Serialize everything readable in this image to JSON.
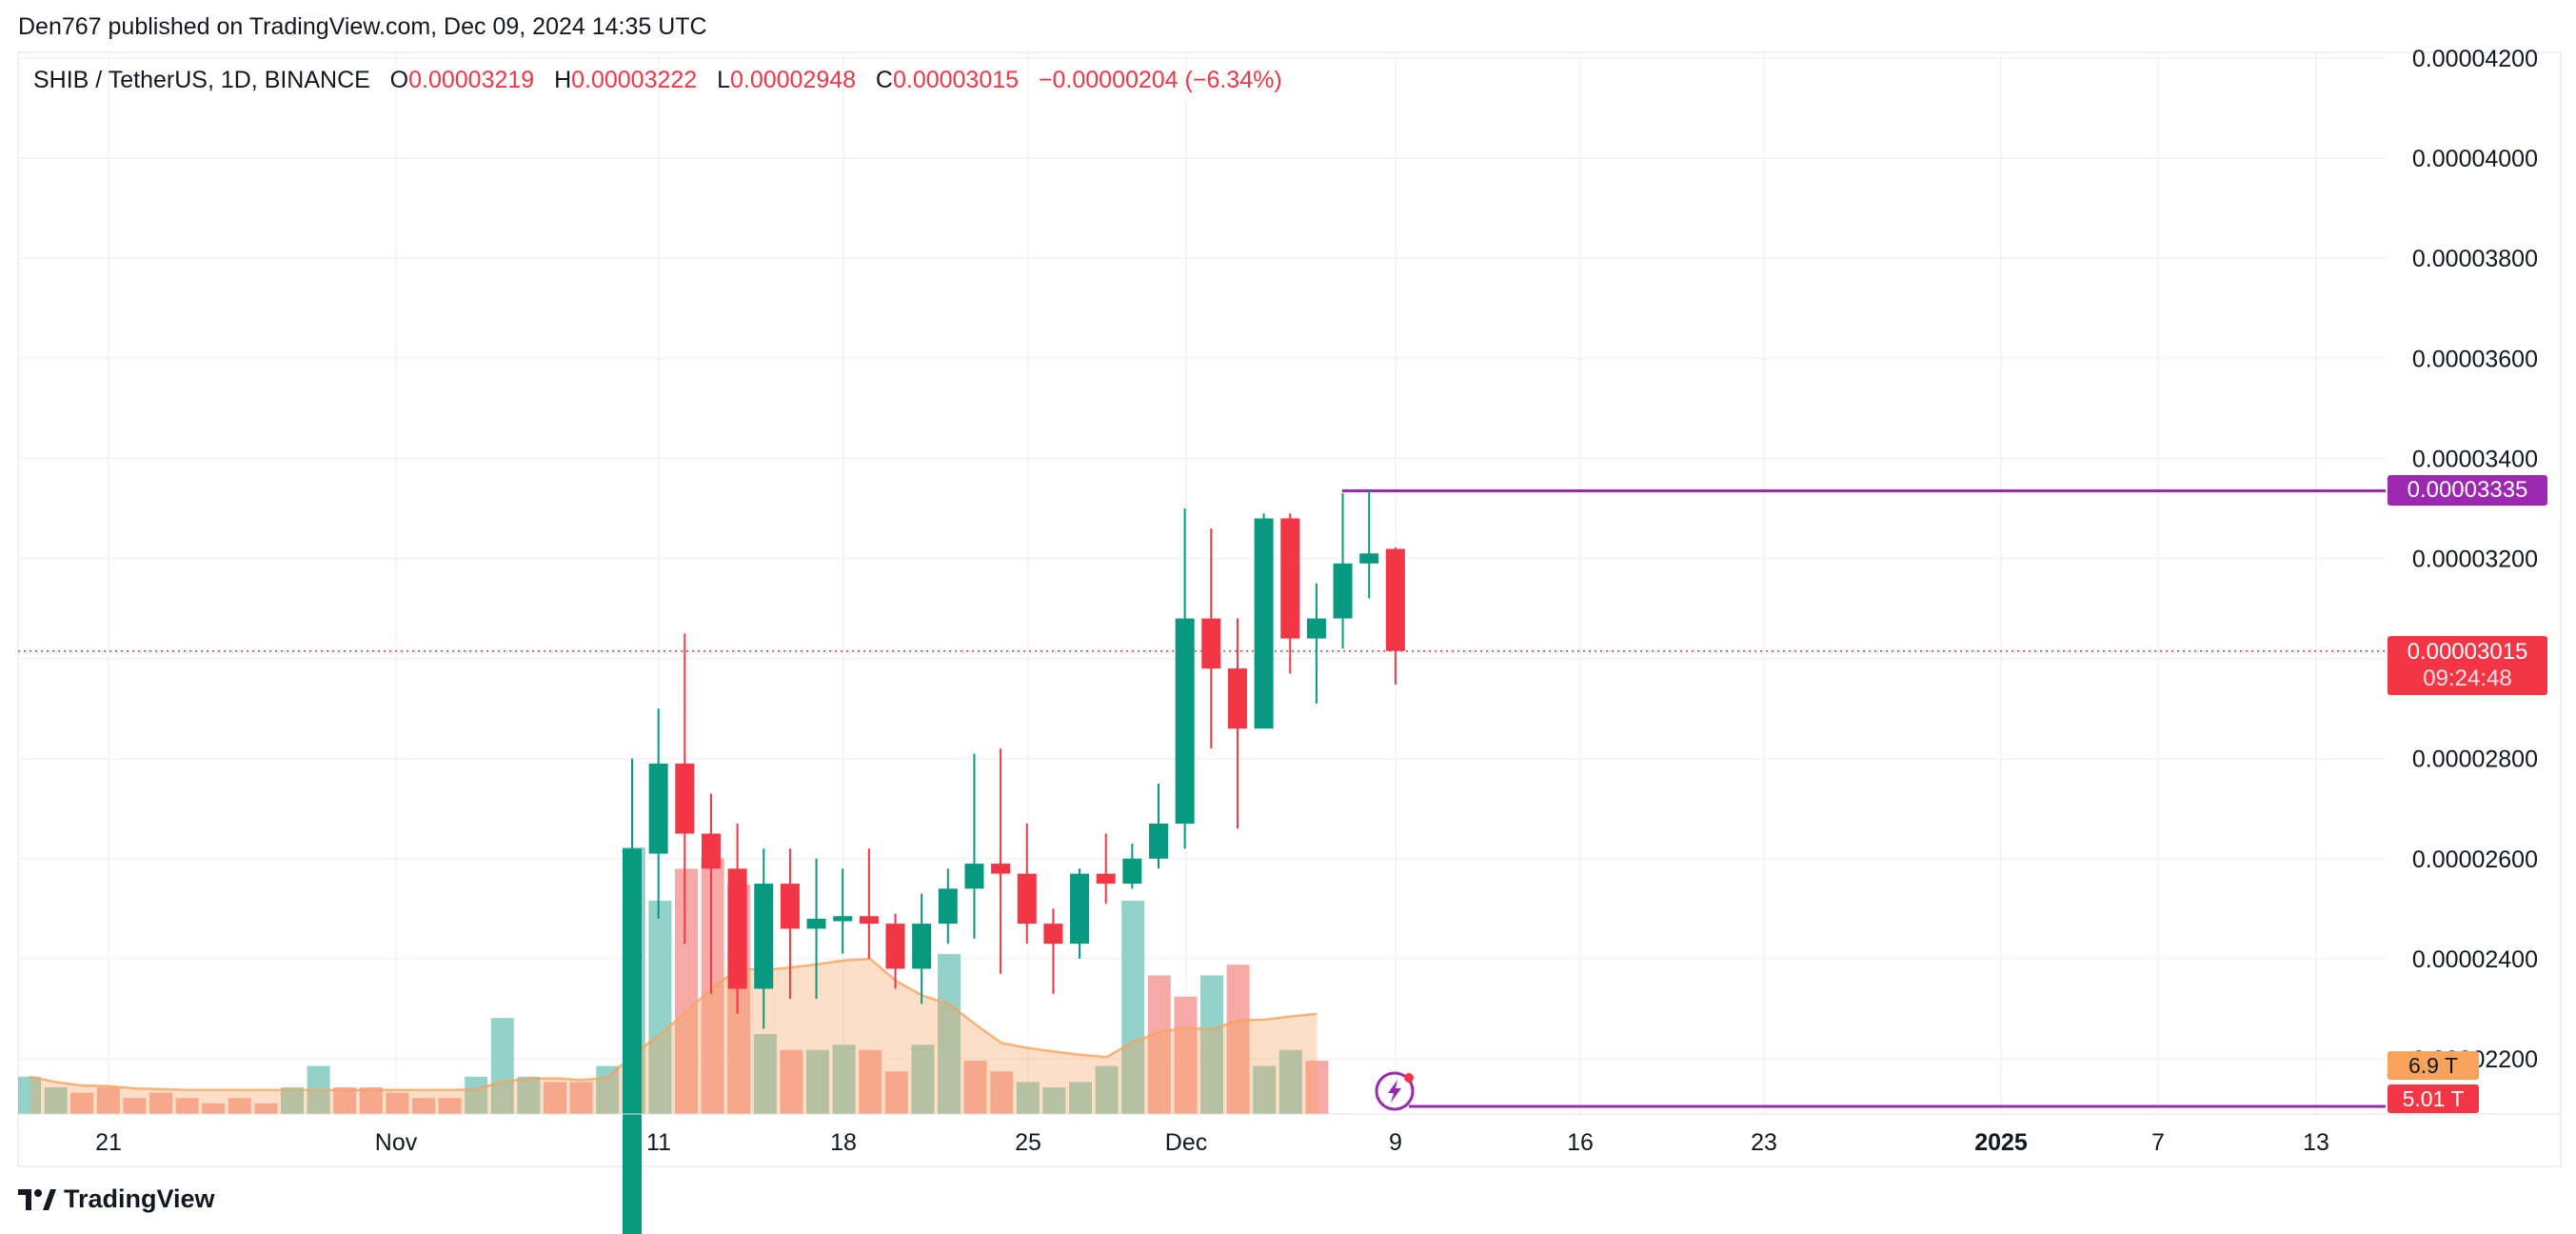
{
  "header": {
    "published": "Den767 published on TradingView.com, Dec 09, 2024 14:35 UTC"
  },
  "legend": {
    "symbol": "SHIB / TetherUS, 1D, BINANCE",
    "o_label": "O",
    "o_value": "0.00003219",
    "h_label": "H",
    "h_value": "0.00003222",
    "l_label": "L",
    "l_value": "0.00002948",
    "c_label": "C",
    "c_value": "0.00003015",
    "change": "−0.00000204 (−6.34%)"
  },
  "price_labels": {
    "resistance": "0.00003335",
    "last_price": "0.00003015",
    "countdown": "09:24:48",
    "volume_ma": "6.9 T",
    "volume": "5.01 T"
  },
  "footer": {
    "brand": "TradingView"
  },
  "colors": {
    "up": "#089981",
    "down": "#f23645",
    "up_volume": "#92d2c8",
    "down_volume": "#f7a9a7",
    "volume_ma": "#f7a35c",
    "horizontal_line": "#9c27b0",
    "last_price": "#f23645"
  },
  "icons": [
    "tradingview-logo-icon",
    "lightning-icon"
  ],
  "chart_data": {
    "type": "candlestick",
    "title": "SHIB / TetherUS, 1D, BINANCE",
    "y_axis": {
      "ticks": [
        "0.00004200",
        "0.00004000",
        "0.00003800",
        "0.00003600",
        "0.00003400",
        "0.00003200",
        "0.00002800",
        "0.00002600",
        "0.00002400",
        "0.00002200"
      ],
      "range": [
        2.09e-05,
        4.21e-05
      ]
    },
    "x_axis": {
      "ticks": [
        {
          "label": "21",
          "bold": false
        },
        {
          "label": "Nov",
          "bold": false
        },
        {
          "label": "11",
          "bold": false
        },
        {
          "label": "18",
          "bold": false
        },
        {
          "label": "25",
          "bold": false
        },
        {
          "label": "Dec",
          "bold": false
        },
        {
          "label": "9",
          "bold": false
        },
        {
          "label": "16",
          "bold": false
        },
        {
          "label": "23",
          "bold": false
        },
        {
          "label": "2025",
          "bold": true
        },
        {
          "label": "7",
          "bold": false
        },
        {
          "label": "13",
          "bold": false
        }
      ]
    },
    "candles": [
      {
        "date": "2024-11-11",
        "o": 1.848e-05,
        "h": 2.8e-05,
        "l": 1.78e-05,
        "c": 2.62e-05
      },
      {
        "date": "2024-11-12",
        "o": 2.61e-05,
        "h": 2.9e-05,
        "l": 2.48e-05,
        "c": 2.79e-05
      },
      {
        "date": "2024-11-13",
        "o": 2.79e-05,
        "h": 3.05e-05,
        "l": 2.43e-05,
        "c": 2.65e-05
      },
      {
        "date": "2024-11-14",
        "o": 2.65e-05,
        "h": 2.73e-05,
        "l": 2.33e-05,
        "c": 2.58e-05
      },
      {
        "date": "2024-11-15",
        "o": 2.58e-05,
        "h": 2.67e-05,
        "l": 2.29e-05,
        "c": 2.34e-05
      },
      {
        "date": "2024-11-16",
        "o": 2.34e-05,
        "h": 2.62e-05,
        "l": 2.26e-05,
        "c": 2.55e-05
      },
      {
        "date": "2024-11-17",
        "o": 2.55e-05,
        "h": 2.62e-05,
        "l": 2.32e-05,
        "c": 2.46e-05
      },
      {
        "date": "2024-11-18",
        "o": 2.46e-05,
        "h": 2.6e-05,
        "l": 2.32e-05,
        "c": 2.48e-05
      },
      {
        "date": "2024-11-19",
        "o": 2.475e-05,
        "h": 2.58e-05,
        "l": 2.41e-05,
        "c": 2.485e-05
      },
      {
        "date": "2024-11-20",
        "o": 2.485e-05,
        "h": 2.62e-05,
        "l": 2.4e-05,
        "c": 2.47e-05
      },
      {
        "date": "2024-11-21",
        "o": 2.47e-05,
        "h": 2.49e-05,
        "l": 2.34e-05,
        "c": 2.38e-05
      },
      {
        "date": "2024-11-22",
        "o": 2.38e-05,
        "h": 2.53e-05,
        "l": 2.31e-05,
        "c": 2.47e-05
      },
      {
        "date": "2024-11-23",
        "o": 2.47e-05,
        "h": 2.58e-05,
        "l": 2.43e-05,
        "c": 2.54e-05
      },
      {
        "date": "2024-11-24",
        "o": 2.54e-05,
        "h": 2.81e-05,
        "l": 2.44e-05,
        "c": 2.59e-05
      },
      {
        "date": "2024-11-25",
        "o": 2.59e-05,
        "h": 2.82e-05,
        "l": 2.37e-05,
        "c": 2.57e-05
      },
      {
        "date": "2024-11-26",
        "o": 2.57e-05,
        "h": 2.67e-05,
        "l": 2.43e-05,
        "c": 2.47e-05
      },
      {
        "date": "2024-11-27",
        "o": 2.47e-05,
        "h": 2.5e-05,
        "l": 2.33e-05,
        "c": 2.43e-05
      },
      {
        "date": "2024-11-28",
        "o": 2.43e-05,
        "h": 2.58e-05,
        "l": 2.4e-05,
        "c": 2.57e-05
      },
      {
        "date": "2024-11-29",
        "o": 2.57e-05,
        "h": 2.65e-05,
        "l": 2.51e-05,
        "c": 2.55e-05
      },
      {
        "date": "2024-11-30",
        "o": 2.55e-05,
        "h": 2.63e-05,
        "l": 2.54e-05,
        "c": 2.6e-05
      },
      {
        "date": "2024-12-01",
        "o": 2.6e-05,
        "h": 2.75e-05,
        "l": 2.58e-05,
        "c": 2.67e-05
      },
      {
        "date": "2024-12-02",
        "o": 2.67e-05,
        "h": 3.3e-05,
        "l": 2.62e-05,
        "c": 3.08e-05
      },
      {
        "date": "2024-12-03",
        "o": 3.08e-05,
        "h": 3.26e-05,
        "l": 2.82e-05,
        "c": 2.98e-05
      },
      {
        "date": "2024-12-04",
        "o": 2.98e-05,
        "h": 3.08e-05,
        "l": 2.66e-05,
        "c": 2.86e-05
      },
      {
        "date": "2024-12-05",
        "o": 2.86e-05,
        "h": 3.29e-05,
        "l": 2.86e-05,
        "c": 3.28e-05
      },
      {
        "date": "2024-12-06",
        "o": 3.28e-05,
        "h": 3.29e-05,
        "l": 2.97e-05,
        "c": 3.04e-05
      },
      {
        "date": "2024-12-07",
        "o": 3.04e-05,
        "h": 3.15e-05,
        "l": 2.91e-05,
        "c": 3.08e-05
      },
      {
        "date": "2024-12-08",
        "o": 3.08e-05,
        "h": 3.33e-05,
        "l": 3.02e-05,
        "c": 3.19e-05
      },
      {
        "date": "2024-12-09a",
        "o": 3.19e-05,
        "h": 3.335e-05,
        "l": 3.12e-05,
        "c": 3.21e-05
      },
      {
        "date": "2024-12-09",
        "o": 3.219e-05,
        "h": 3.222e-05,
        "l": 2.948e-05,
        "c": 3.015e-05
      }
    ],
    "volume_scale_max": 0.5,
    "volume_bars": [
      {
        "v": 0.07,
        "up": true
      },
      {
        "v": 0.05,
        "up": true
      },
      {
        "v": 0.04,
        "up": false
      },
      {
        "v": 0.05,
        "up": false
      },
      {
        "v": 0.03,
        "up": false
      },
      {
        "v": 0.04,
        "up": false
      },
      {
        "v": 0.03,
        "up": false
      },
      {
        "v": 0.02,
        "up": false
      },
      {
        "v": 0.03,
        "up": false
      },
      {
        "v": 0.02,
        "up": false
      },
      {
        "v": 0.05,
        "up": true
      },
      {
        "v": 0.09,
        "up": true
      },
      {
        "v": 0.05,
        "up": false
      },
      {
        "v": 0.05,
        "up": false
      },
      {
        "v": 0.04,
        "up": false
      },
      {
        "v": 0.03,
        "up": false
      },
      {
        "v": 0.03,
        "up": false
      },
      {
        "v": 0.07,
        "up": true
      },
      {
        "v": 0.18,
        "up": true
      },
      {
        "v": 0.07,
        "up": true
      },
      {
        "v": 0.06,
        "up": false
      },
      {
        "v": 0.06,
        "up": false
      },
      {
        "v": 0.09,
        "up": true
      },
      {
        "v": 0.5,
        "up": true
      },
      {
        "v": 0.4,
        "up": true
      },
      {
        "v": 0.46,
        "up": false
      },
      {
        "v": 0.48,
        "up": false
      },
      {
        "v": 0.43,
        "up": false
      },
      {
        "v": 0.15,
        "up": true
      },
      {
        "v": 0.12,
        "up": false
      },
      {
        "v": 0.12,
        "up": true
      },
      {
        "v": 0.13,
        "up": true
      },
      {
        "v": 0.12,
        "up": false
      },
      {
        "v": 0.08,
        "up": false
      },
      {
        "v": 0.13,
        "up": true
      },
      {
        "v": 0.3,
        "up": true
      },
      {
        "v": 0.1,
        "up": false
      },
      {
        "v": 0.08,
        "up": false
      },
      {
        "v": 0.06,
        "up": true
      },
      {
        "v": 0.05,
        "up": true
      },
      {
        "v": 0.06,
        "up": true
      },
      {
        "v": 0.09,
        "up": true
      },
      {
        "v": 0.4,
        "up": true
      },
      {
        "v": 0.26,
        "up": false
      },
      {
        "v": 0.22,
        "up": false
      },
      {
        "v": 0.26,
        "up": true
      },
      {
        "v": 0.28,
        "up": false
      },
      {
        "v": 0.09,
        "up": true
      },
      {
        "v": 0.12,
        "up": true
      },
      {
        "v": 0.1,
        "up": false
      }
    ],
    "levels": {
      "resistance": 3.335e-05,
      "last_price": 3.015e-05
    }
  }
}
